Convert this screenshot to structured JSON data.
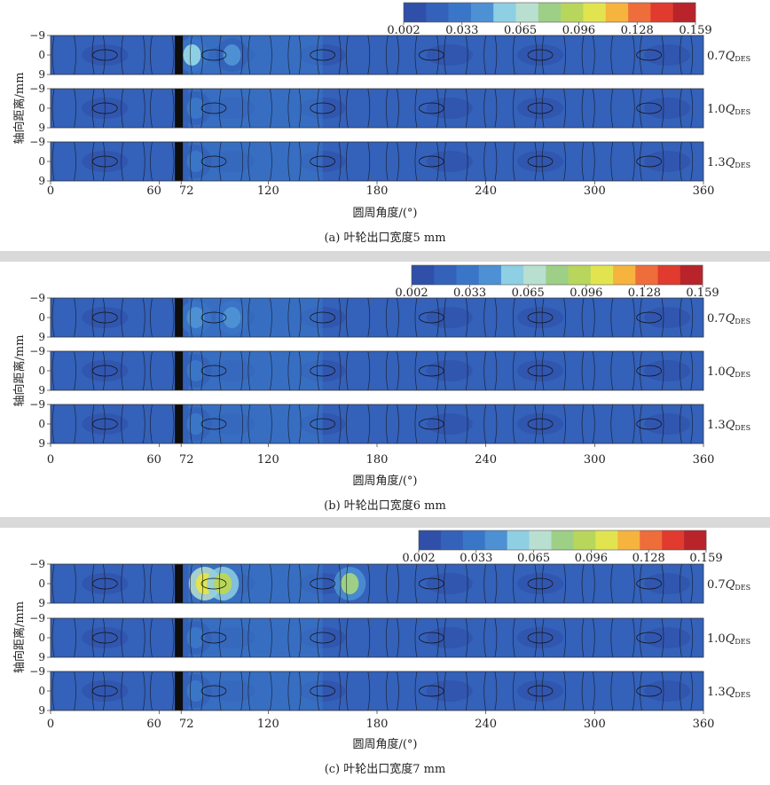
{
  "colorbar": {
    "colors": [
      "#2f4fa8",
      "#3461b9",
      "#3a76c8",
      "#4d90d4",
      "#8ecfe3",
      "#b9dfd0",
      "#9dcf86",
      "#b8d65c",
      "#e2e44f",
      "#f6b33e",
      "#ee6d3a",
      "#e03b2e",
      "#b8242a"
    ],
    "tick_labels": [
      "0.002",
      "0.033",
      "0.065",
      "0.096",
      "0.128",
      "0.159"
    ]
  },
  "axes": {
    "x_ticks": [
      "0",
      "60",
      "72",
      "120",
      "180",
      "240",
      "300",
      "360"
    ],
    "x_label": "圆周角度/(°)",
    "y_ticks": [
      "−9",
      "0",
      "9"
    ],
    "y_label": "轴向距离/mm"
  },
  "series_labels": [
    {
      "prefix": "0.7",
      "symbol": "Q",
      "sub": "DES"
    },
    {
      "prefix": "1.0",
      "symbol": "Q",
      "sub": "DES"
    },
    {
      "prefix": "1.3",
      "symbol": "Q",
      "sub": "DES"
    }
  ],
  "chart_data": [
    {
      "type": "heatmap",
      "caption": "(a) 叶轮出口宽度5 mm",
      "x_range": [
        0,
        360
      ],
      "y_range": [
        -9,
        9
      ],
      "value_range": [
        0.002,
        0.159
      ],
      "series": [
        {
          "name": "0.7QDES",
          "hotspots": [
            {
              "x": 78,
              "y": 0,
              "value": 0.06
            },
            {
              "x": 100,
              "y": 0,
              "value": 0.04
            }
          ]
        },
        {
          "name": "1.0QDES",
          "hotspots": [
            {
              "x": 80,
              "y": 0,
              "value": 0.035
            }
          ]
        },
        {
          "name": "1.3QDES",
          "hotspots": [
            {
              "x": 80,
              "y": 0,
              "value": 0.035
            }
          ]
        }
      ]
    },
    {
      "type": "heatmap",
      "caption": "(b) 叶轮出口宽度6 mm",
      "x_range": [
        0,
        360
      ],
      "y_range": [
        -9,
        9
      ],
      "value_range": [
        0.002,
        0.159
      ],
      "series": [
        {
          "name": "0.7QDES",
          "hotspots": [
            {
              "x": 80,
              "y": 0,
              "value": 0.045
            },
            {
              "x": 100,
              "y": 0,
              "value": 0.045
            }
          ]
        },
        {
          "name": "1.0QDES",
          "hotspots": [
            {
              "x": 80,
              "y": 0,
              "value": 0.03
            }
          ]
        },
        {
          "name": "1.3QDES",
          "hotspots": [
            {
              "x": 80,
              "y": 0,
              "value": 0.035
            }
          ]
        }
      ]
    },
    {
      "type": "heatmap",
      "caption": "(c) 叶轮出口宽度7 mm",
      "x_range": [
        0,
        360
      ],
      "y_range": [
        -9,
        9
      ],
      "value_range": [
        0.002,
        0.159
      ],
      "series": [
        {
          "name": "0.7QDES",
          "hotspots": [
            {
              "x": 85,
              "y": 0,
              "value": 0.11
            },
            {
              "x": 95,
              "y": 0,
              "value": 0.09
            },
            {
              "x": 165,
              "y": 0,
              "value": 0.08
            }
          ]
        },
        {
          "name": "1.0QDES",
          "hotspots": [
            {
              "x": 80,
              "y": 0,
              "value": 0.03
            }
          ]
        },
        {
          "name": "1.3QDES",
          "hotspots": [
            {
              "x": 80,
              "y": 0,
              "value": 0.035
            }
          ]
        }
      ]
    }
  ]
}
